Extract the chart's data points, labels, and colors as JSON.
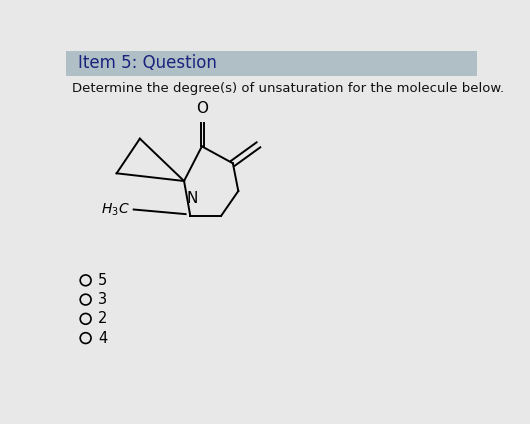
{
  "header_text": "Item 5: Question",
  "header_bg": "#b0bec5",
  "body_bg": "#e8e8e8",
  "question_text": "Determine the degree(s) of unsaturation for the molecule below.",
  "options": [
    "5",
    "3",
    "2",
    "4"
  ],
  "title_fontsize": 12,
  "question_fontsize": 9.5,
  "option_fontsize": 10.5,
  "header_text_color": "#1a237e",
  "body_text_color": "#111111"
}
